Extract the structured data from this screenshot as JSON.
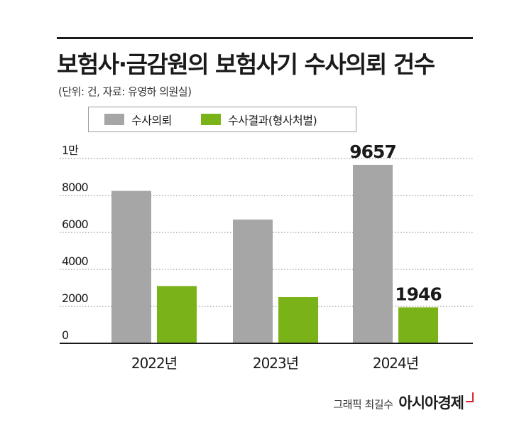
{
  "title": "보험사·금감원의 보험사기 수사의뢰 건수",
  "subtitle": "(단위: 건, 자료: 유영하 의원실)",
  "credit": {
    "label": "그래픽 최길수",
    "brand": "아시아경제"
  },
  "colors": {
    "series1": "#a6a6a6",
    "series2": "#7ab317",
    "axis": "#1a1a1a",
    "grid": "#7f7f7f"
  },
  "chart_data": {
    "type": "bar",
    "categories": [
      "2022년",
      "2023년",
      "2024년"
    ],
    "series": [
      {
        "name": "수사의뢰",
        "values": [
          8250,
          6700,
          9657
        ]
      },
      {
        "name": "수사결과(형사처벌)",
        "values": [
          3100,
          2500,
          1946
        ]
      }
    ],
    "data_labels": [
      {
        "series": 0,
        "index": 2,
        "text": "9657"
      },
      {
        "series": 1,
        "index": 2,
        "text": "1946"
      }
    ],
    "yticks": [
      {
        "value": 0,
        "label": "0"
      },
      {
        "value": 2000,
        "label": "2000"
      },
      {
        "value": 4000,
        "label": "4000"
      },
      {
        "value": 6000,
        "label": "6000"
      },
      {
        "value": 8000,
        "label": "8000"
      },
      {
        "value": 10000,
        "label": "1만"
      }
    ],
    "ylim": [
      0,
      10000
    ],
    "grid": true,
    "legend_position": "top-left",
    "title": "보험사·금감원의 보험사기 수사의뢰 건수",
    "xlabel": "",
    "ylabel": ""
  }
}
